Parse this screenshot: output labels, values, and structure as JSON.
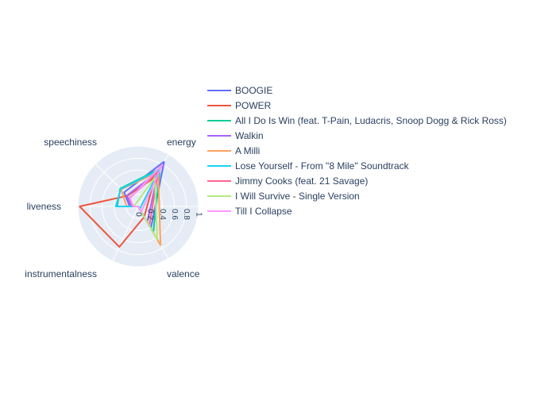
{
  "chart_data": {
    "type": "radar",
    "axes": [
      "energy",
      "speechiness",
      "liveness",
      "instrumentalness",
      "valence"
    ],
    "rlim": [
      0,
      1
    ],
    "radial_ticks": [
      "0",
      "0.2",
      "0.4",
      "0.6",
      "0.8",
      "1"
    ],
    "legend_position": "top-right",
    "series": [
      {
        "name": "BOOGIE",
        "color": "#636efa",
        "values": [
          0.86,
          0.33,
          0.14,
          0.0,
          0.42
        ]
      },
      {
        "name": "POWER",
        "color": "#ef553b",
        "values": [
          0.56,
          0.25,
          0.97,
          0.74,
          0.2
        ]
      },
      {
        "name": "All I Do Is Win (feat. T-Pain, Ludacris, Snoop Dogg & Rick Ross)",
        "color": "#00cc96",
        "values": [
          0.72,
          0.42,
          0.35,
          0.0,
          0.5
        ]
      },
      {
        "name": "Walkin",
        "color": "#ab63fa",
        "values": [
          0.66,
          0.26,
          0.12,
          0.0,
          0.3
        ]
      },
      {
        "name": "A Milli",
        "color": "#ffa15a",
        "values": [
          0.66,
          0.4,
          0.19,
          0.0,
          0.74
        ]
      },
      {
        "name": "Lose Yourself - From \"8 Mile\" Soundtrack",
        "color": "#19d3f3",
        "values": [
          0.7,
          0.41,
          0.37,
          0.0,
          0.05
        ]
      },
      {
        "name": "Jimmy Cooks (feat. 21 Savage)",
        "color": "#ff6692",
        "values": [
          0.66,
          0.2,
          0.09,
          0.0,
          0.37
        ]
      },
      {
        "name": "I Will Survive - Single Version",
        "color": "#b6e880",
        "values": [
          0.55,
          0.06,
          0.08,
          0.0,
          0.63
        ]
      },
      {
        "name": "Till I Collapse",
        "color": "#ff97ff",
        "values": [
          0.8,
          0.19,
          0.08,
          0.0,
          0.1
        ]
      }
    ]
  }
}
